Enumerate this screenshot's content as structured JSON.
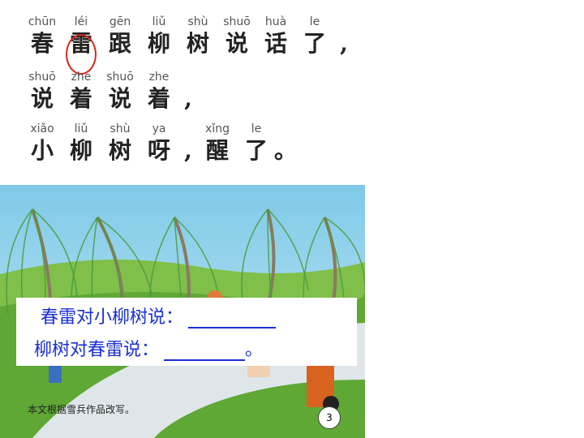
{
  "lines": [
    [
      {
        "py": "chūn",
        "hz": "春"
      },
      {
        "py": "léi",
        "hz": "雷"
      },
      {
        "py": "gēn",
        "hz": "跟"
      },
      {
        "py": "liǔ",
        "hz": "柳"
      },
      {
        "py": "shù",
        "hz": "树"
      },
      {
        "py": "shuō",
        "hz": "说"
      },
      {
        "py": "huà",
        "hz": "话"
      },
      {
        "py": "le",
        "hz": "了"
      },
      {
        "py": "",
        "hz": ","
      }
    ],
    [
      {
        "py": "shuō",
        "hz": "说"
      },
      {
        "py": "zhe",
        "hz": "着"
      },
      {
        "py": "shuō",
        "hz": "说"
      },
      {
        "py": "zhe",
        "hz": "着"
      },
      {
        "py": "",
        "hz": ","
      }
    ],
    [
      {
        "py": "xiǎo",
        "hz": "小"
      },
      {
        "py": "liǔ",
        "hz": "柳"
      },
      {
        "py": "shù",
        "hz": "树"
      },
      {
        "py": "ya",
        "hz": "呀"
      },
      {
        "py": "",
        "hz": ","
      },
      {
        "py": "xǐng",
        "hz": "醒"
      },
      {
        "py": "le",
        "hz": "了"
      },
      {
        "py": "",
        "hz": "。"
      }
    ]
  ],
  "questions": {
    "q1": "春雷对小柳树说：",
    "q2": "柳树对春雷说：",
    "q2_end": "。"
  },
  "book": {
    "credit": "本文根据雪兵作品改写。",
    "page_number": "3"
  },
  "colors": {
    "question_text": "#1a2fd6",
    "highlight_circle": "#d9261c"
  }
}
